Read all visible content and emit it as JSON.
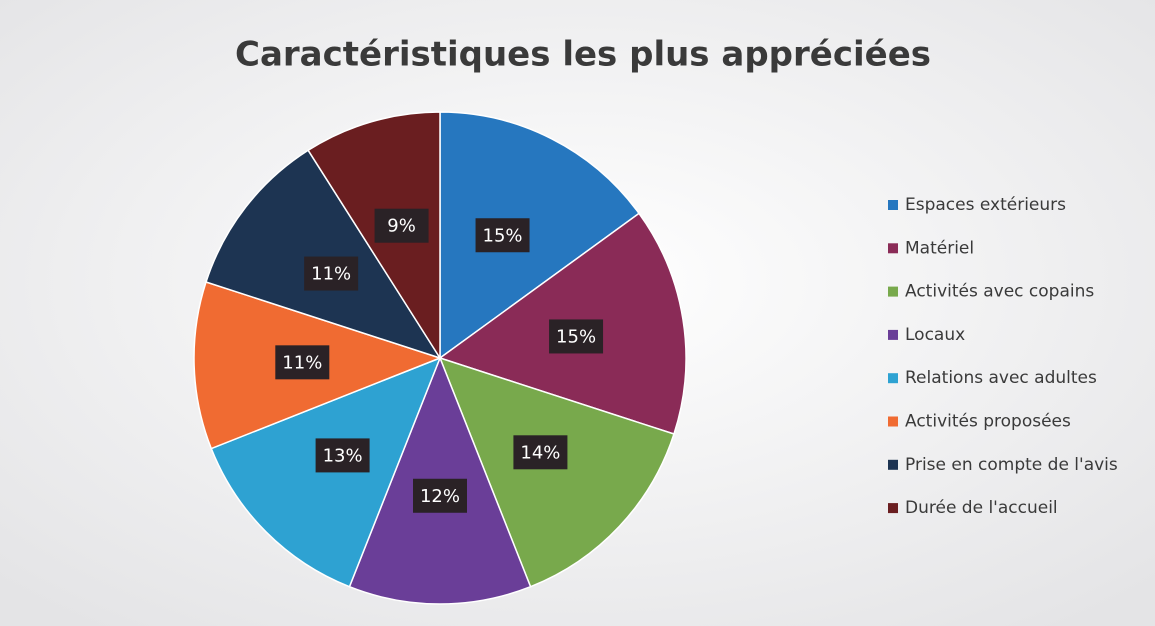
{
  "chart_data": {
    "type": "pie",
    "title": "Caractéristiques les plus appréciées",
    "categories": [
      "Espaces extérieurs",
      "Matériel",
      "Activités avec copains",
      "Locaux",
      "Relations avec adultes",
      "Activités proposées",
      "Prise en compte de l'avis",
      "Durée de l'accueil"
    ],
    "values": [
      15,
      15,
      14,
      12,
      13,
      11,
      11,
      9
    ],
    "value_labels": [
      "15%",
      "15%",
      "14%",
      "12%",
      "13%",
      "11%",
      "11%",
      "9%"
    ],
    "colors": [
      "#2677bf",
      "#8a2b57",
      "#78a94c",
      "#6a3e98",
      "#2ea2d2",
      "#f06b32",
      "#1d3452",
      "#6a1e20"
    ],
    "legend": "right"
  }
}
